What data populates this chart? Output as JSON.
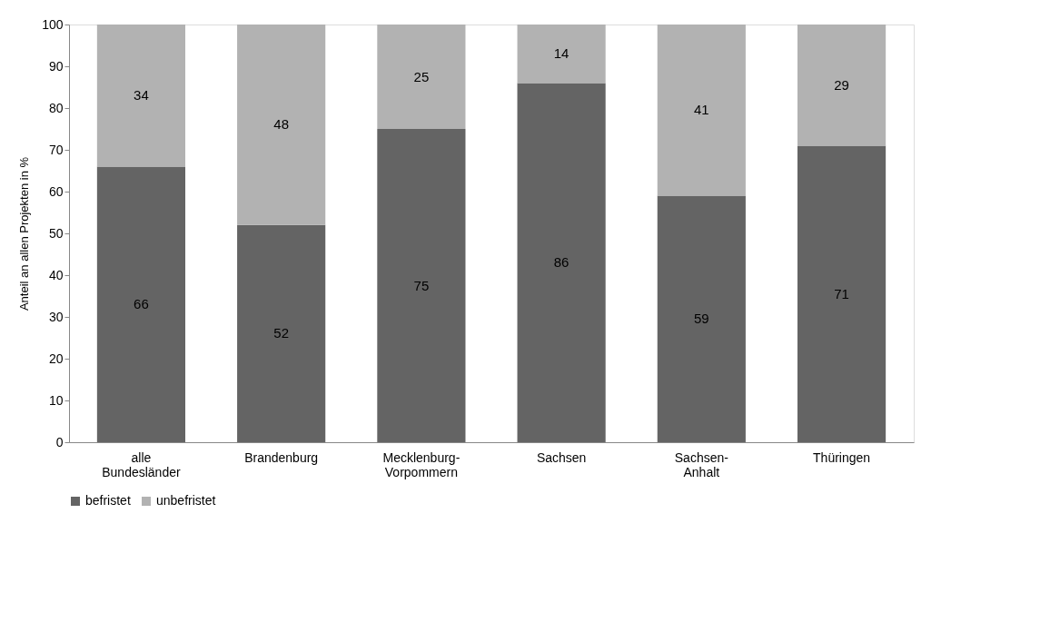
{
  "chart_data": {
    "type": "bar",
    "stacked": true,
    "ylabel": "Anteil an allen Projekten in %",
    "categories": [
      "alle Bundesländer",
      "Brandenburg",
      "Mecklenburg-Vorpommern",
      "Sachsen",
      "Sachsen-Anhalt",
      "Thüringen"
    ],
    "series": [
      {
        "name": "befristet",
        "color": "#646464",
        "values": [
          66,
          52,
          75,
          86,
          59,
          71
        ]
      },
      {
        "name": "unbefristet",
        "color": "#b2b2b2",
        "values": [
          34,
          48,
          25,
          14,
          41,
          29
        ]
      }
    ],
    "ylim": [
      0,
      100
    ],
    "yticks": [
      0,
      10,
      20,
      30,
      40,
      50,
      60,
      70,
      80,
      90,
      100
    ],
    "data_labels": true,
    "grid": false,
    "legend": "bottom"
  }
}
